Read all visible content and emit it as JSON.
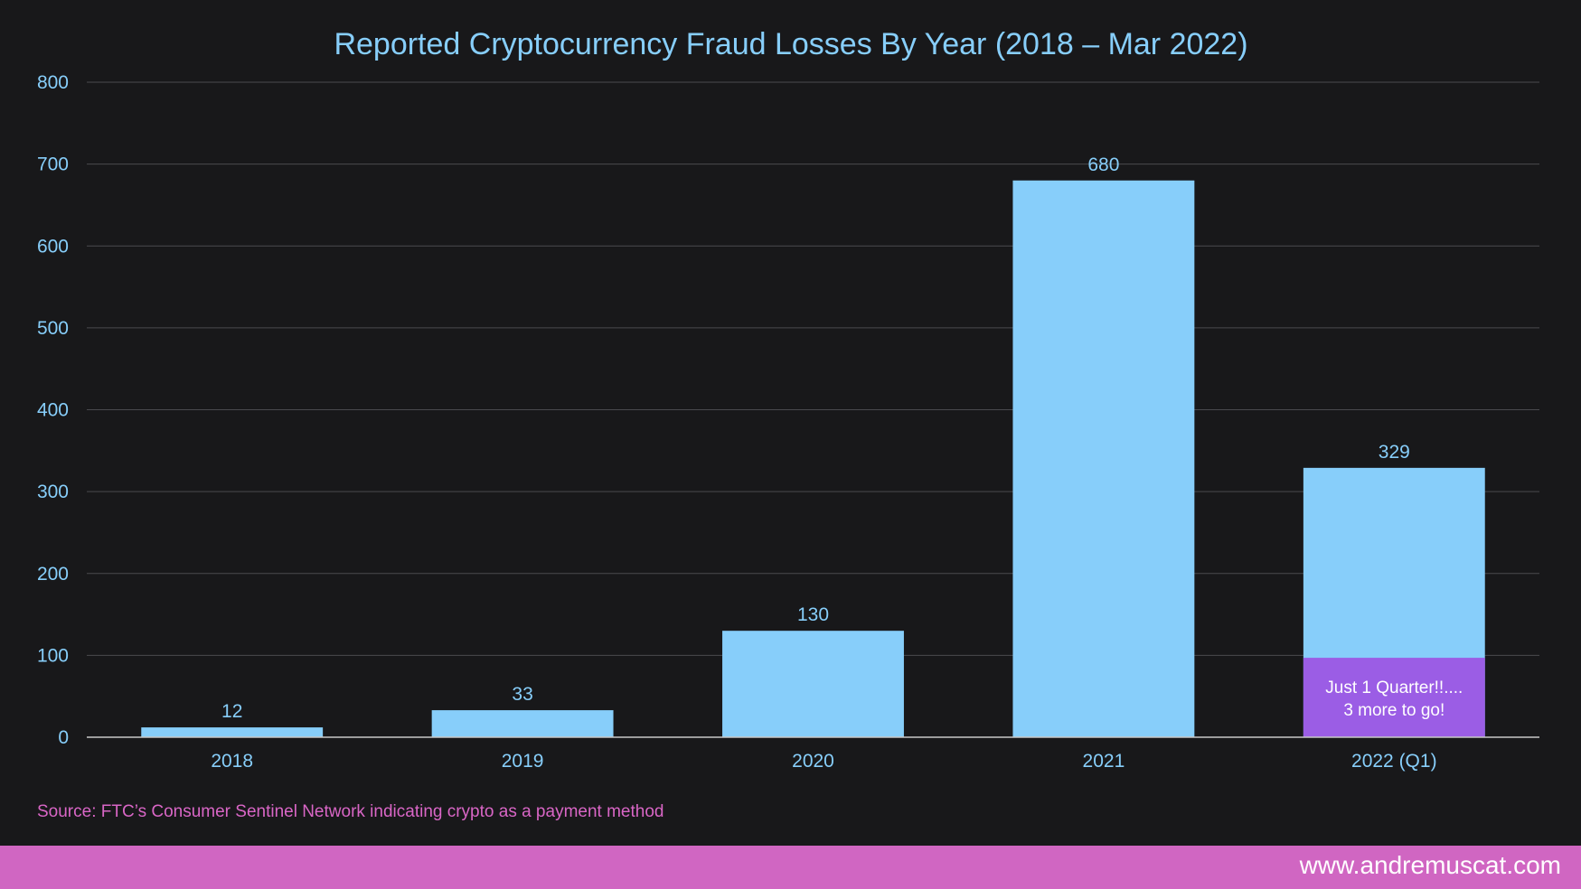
{
  "chart_data": {
    "type": "bar",
    "title": "Reported Cryptocurrency Fraud Losses By Year (2018 – Mar 2022)",
    "categories": [
      "2018",
      "2019",
      "2020",
      "2021",
      "2022 (Q1)"
    ],
    "values": [
      12,
      33,
      130,
      680,
      329
    ],
    "data_labels": [
      "12",
      "33",
      "130",
      "680",
      "329"
    ],
    "ylim": [
      0,
      800
    ],
    "yticks": [
      0,
      100,
      200,
      300,
      400,
      500,
      600,
      700,
      800
    ],
    "ytick_labels": [
      "0",
      "100",
      "200",
      "300",
      "400",
      "500",
      "600",
      "700",
      "800"
    ],
    "grid": true,
    "legend": "none",
    "bar_color": "#87cefa",
    "annotation": {
      "category": "2022 (Q1)",
      "lines": [
        "Just 1 Quarter!!....",
        "3 more to go!"
      ],
      "fill_top_value": 97,
      "color": "#9b5de5",
      "text_color": "#ffffff"
    }
  },
  "source": "Source: FTC’s Consumer Sentinel Network indicating crypto as a payment method",
  "footer": {
    "url": "www.andremuscat.com"
  },
  "colors": {
    "background": "#18181a",
    "title": "#87cefa",
    "axis_text": "#87cefa",
    "gridline": "#4a4a4e",
    "baseline": "#c8c8c8",
    "source_text": "#d966c6",
    "footer_bar": "#d066c2"
  }
}
